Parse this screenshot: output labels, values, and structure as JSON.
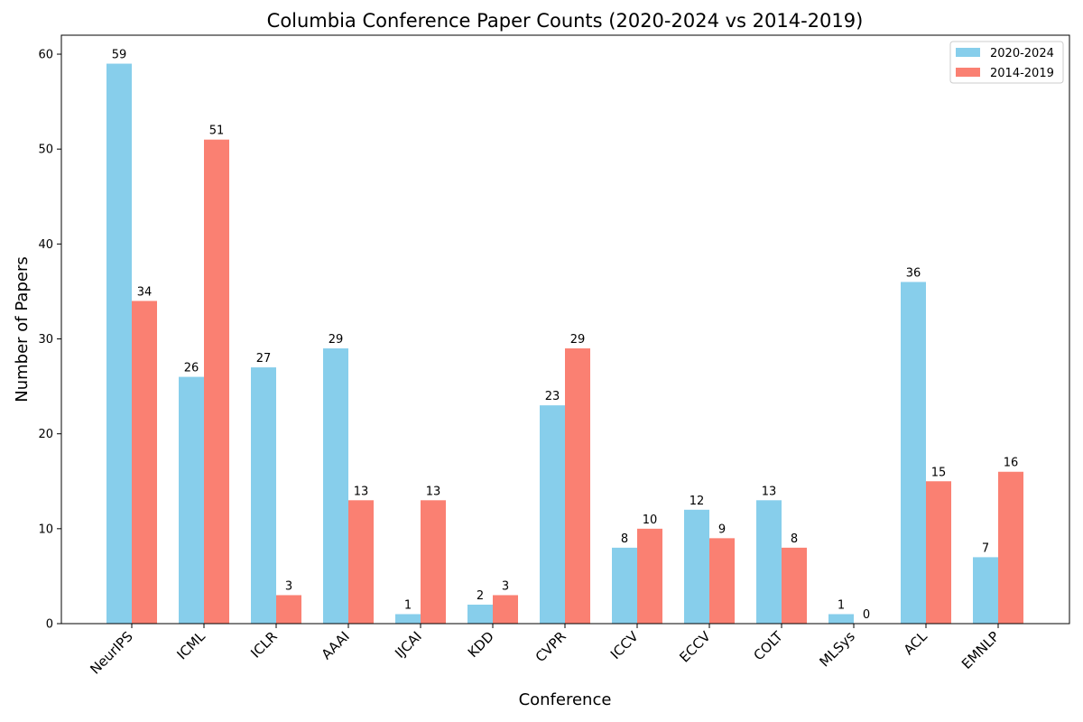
{
  "chart_data": {
    "type": "bar",
    "title": "Columbia Conference Paper Counts (2020-2024 vs 2014-2019)",
    "xlabel": "Conference",
    "ylabel": "Number of Papers",
    "categories": [
      "NeurIPS",
      "ICML",
      "ICLR",
      "AAAI",
      "IJCAI",
      "KDD",
      "CVPR",
      "ICCV",
      "ECCV",
      "COLT",
      "MLSys",
      "ACL",
      "EMNLP"
    ],
    "series": [
      {
        "name": "2020-2024",
        "color": "#87CEEB",
        "values": [
          59,
          26,
          27,
          29,
          1,
          2,
          23,
          8,
          12,
          13,
          1,
          36,
          7
        ]
      },
      {
        "name": "2014-2019",
        "color": "#FA8072",
        "values": [
          34,
          51,
          3,
          13,
          13,
          3,
          29,
          10,
          9,
          8,
          0,
          15,
          16
        ]
      }
    ],
    "ylim": [
      0,
      62
    ],
    "yticks": [
      0,
      10,
      20,
      30,
      40,
      50,
      60
    ],
    "grid": false,
    "legend_position": "top-right"
  }
}
